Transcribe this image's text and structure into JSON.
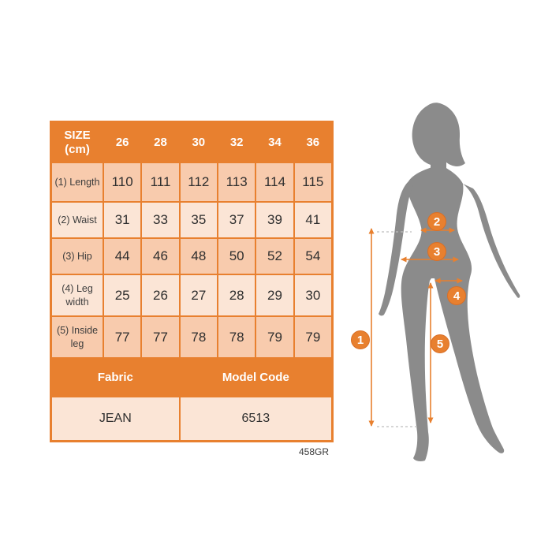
{
  "size_table": {
    "header": {
      "title_line1": "SIZE",
      "title_line2": "(cm)",
      "sizes": [
        "26",
        "28",
        "30",
        "32",
        "34",
        "36"
      ]
    },
    "rows": [
      {
        "label": "(1) Length",
        "values": [
          "110",
          "111",
          "112",
          "113",
          "114",
          "115"
        ]
      },
      {
        "label": "(2) Waist",
        "values": [
          "31",
          "33",
          "35",
          "37",
          "39",
          "41"
        ]
      },
      {
        "label": "(3) Hip",
        "values": [
          "44",
          "46",
          "48",
          "50",
          "52",
          "54"
        ]
      },
      {
        "label": "(4) Leg width",
        "values": [
          "25",
          "26",
          "27",
          "28",
          "29",
          "30"
        ]
      },
      {
        "label": "(5) Inside leg",
        "values": [
          "77",
          "77",
          "78",
          "78",
          "79",
          "79"
        ]
      }
    ],
    "footer": {
      "fabric_label": "Fabric",
      "model_code_label": "Model Code",
      "fabric_value": "JEAN",
      "model_code_value": "6513"
    }
  },
  "product_code": "458GR",
  "figure": {
    "markers": [
      {
        "label": "1"
      },
      {
        "label": "2"
      },
      {
        "label": "3"
      },
      {
        "label": "4"
      },
      {
        "label": "5"
      }
    ]
  },
  "colors": {
    "accent_orange": "#E8802F",
    "row_light": "#FBE5D6",
    "row_dark": "#F8CBAD",
    "silhouette_gray": "#8B8B8B"
  }
}
